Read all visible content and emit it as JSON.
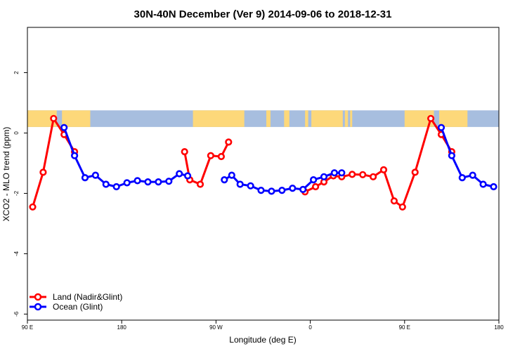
{
  "chart_data": {
    "type": "line",
    "title": "30N-40N December (Ver 9)   2014-09-06 to 2018-12-31",
    "xlabel": "Longitude (deg E)",
    "ylabel": "XCO2 - MLO trend (ppm)",
    "xlim": [
      90,
      540
    ],
    "ylim": [
      -6.2,
      3.5
    ],
    "x_ticks": [
      {
        "value": 90,
        "label": "90 E"
      },
      {
        "value": 180,
        "label": "180"
      },
      {
        "value": 270,
        "label": "90 W"
      },
      {
        "value": 360,
        "label": "0"
      },
      {
        "value": 450,
        "label": "90 E"
      },
      {
        "value": 540,
        "label": "180"
      }
    ],
    "y_ticks": [
      {
        "value": -6,
        "label": "-6"
      },
      {
        "value": -4,
        "label": "-4"
      },
      {
        "value": -2,
        "label": "-2"
      },
      {
        "value": 0,
        "label": "0"
      },
      {
        "value": 2,
        "label": "2"
      }
    ],
    "map_band": {
      "y_range": [
        0.2,
        0.75
      ],
      "ocean_color": "#a7bedf",
      "land_color": "#fdd87a"
    },
    "series": [
      {
        "name": "Land (Nadir&Glint)",
        "color": "#ff0000",
        "segments": [
          [
            [
              95,
              -2.45
            ],
            [
              105,
              -1.3
            ],
            [
              115,
              0.48
            ],
            [
              125,
              -0.05
            ],
            [
              135,
              -0.62
            ]
          ],
          [
            [
              240,
              -0.62
            ],
            [
              245,
              -1.55
            ],
            [
              255,
              -1.7
            ],
            [
              265,
              -0.75
            ],
            [
              275,
              -0.78
            ],
            [
              282,
              -0.3
            ]
          ],
          [
            [
              355,
              -1.95
            ],
            [
              365,
              -1.78
            ],
            [
              373,
              -1.62
            ],
            [
              382,
              -1.42
            ],
            [
              390,
              -1.45
            ],
            [
              400,
              -1.37
            ],
            [
              410,
              -1.38
            ],
            [
              420,
              -1.45
            ],
            [
              430,
              -1.22
            ],
            [
              440,
              -2.25
            ],
            [
              448,
              -2.45
            ],
            [
              460,
              -1.3
            ],
            [
              475,
              0.48
            ],
            [
              485,
              -0.05
            ],
            [
              495,
              -0.62
            ]
          ]
        ]
      },
      {
        "name": "Ocean (Glint)",
        "color": "#0000ff",
        "segments": [
          [
            [
              125,
              0.18
            ],
            [
              135,
              -0.75
            ],
            [
              145,
              -1.48
            ],
            [
              155,
              -1.4
            ],
            [
              165,
              -1.7
            ],
            [
              175,
              -1.78
            ],
            [
              185,
              -1.65
            ],
            [
              195,
              -1.58
            ],
            [
              205,
              -1.62
            ],
            [
              215,
              -1.62
            ],
            [
              225,
              -1.6
            ],
            [
              235,
              -1.35
            ],
            [
              243,
              -1.42
            ]
          ],
          [
            [
              278,
              -1.55
            ],
            [
              285,
              -1.4
            ],
            [
              293,
              -1.7
            ],
            [
              303,
              -1.75
            ],
            [
              313,
              -1.9
            ],
            [
              323,
              -1.93
            ],
            [
              333,
              -1.9
            ],
            [
              343,
              -1.83
            ],
            [
              353,
              -1.87
            ],
            [
              363,
              -1.55
            ],
            [
              373,
              -1.45
            ],
            [
              383,
              -1.32
            ],
            [
              390,
              -1.32
            ]
          ],
          [
            [
              485,
              0.18
            ],
            [
              495,
              -0.75
            ],
            [
              505,
              -1.48
            ],
            [
              515,
              -1.4
            ],
            [
              525,
              -1.7
            ],
            [
              535,
              -1.78
            ]
          ]
        ]
      }
    ]
  },
  "legend": {
    "items": [
      {
        "label": "Land (Nadir&Glint)",
        "color": "#ff0000"
      },
      {
        "label": "Ocean (Glint)",
        "color": "#0000ff"
      }
    ]
  }
}
